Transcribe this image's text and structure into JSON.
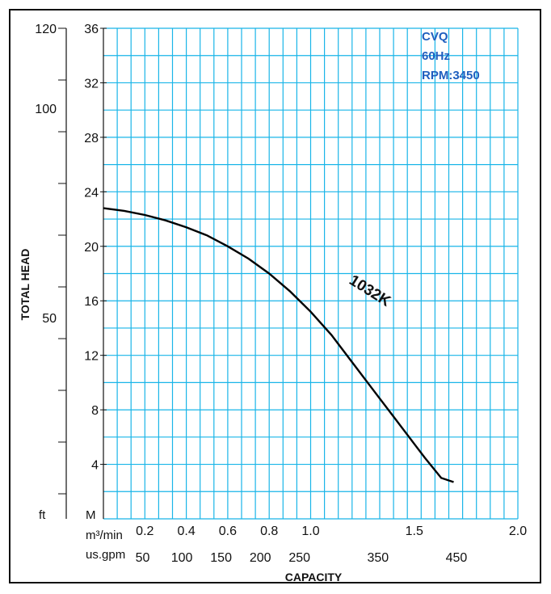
{
  "chart_data": {
    "type": "line",
    "legend_lines": [
      "CVQ",
      "60Hz",
      "RPM:3450"
    ],
    "colors": {
      "grid": "#19b5e8",
      "curve": "#000000",
      "legend": "#1f5fbf",
      "frame": "#111111"
    },
    "ylabel": "TOTAL HEAD",
    "xlabel": "CAPACITY",
    "y_unit_m": "M",
    "y_unit_ft": "ft",
    "x_unit_m3": "m³/min",
    "x_unit_gpm": "us.gpm",
    "y_m_ticks": [
      "4",
      "8",
      "12",
      "16",
      "20",
      "24",
      "28",
      "32",
      "36"
    ],
    "y_ft_ticks": [
      "50",
      "100",
      "120"
    ],
    "x_m3_ticks": [
      "0.2",
      "0.4",
      "0.6",
      "0.8",
      "1.0",
      "1.5",
      "2.0"
    ],
    "x_gpm_ticks": [
      "50",
      "100",
      "150",
      "200",
      "250",
      "350",
      "450"
    ],
    "series": [
      {
        "name": "1032K",
        "x_m3min": [
          0.0,
          0.1,
          0.2,
          0.3,
          0.4,
          0.5,
          0.6,
          0.7,
          0.8,
          0.9,
          1.0,
          1.1,
          1.2,
          1.3,
          1.4,
          1.5,
          1.55,
          1.63,
          1.69
        ],
        "y_m": [
          22.8,
          22.6,
          22.3,
          21.9,
          21.4,
          20.8,
          20.0,
          19.1,
          18.0,
          16.7,
          15.2,
          13.5,
          11.5,
          9.5,
          7.5,
          5.5,
          4.5,
          3.0,
          2.7
        ]
      }
    ]
  }
}
